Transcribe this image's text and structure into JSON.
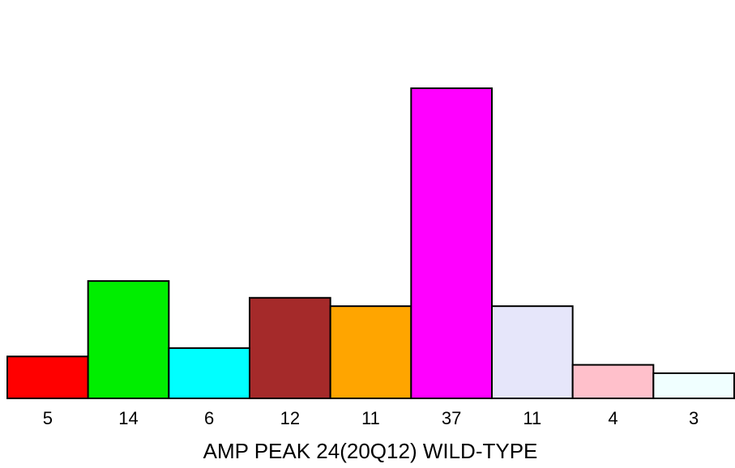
{
  "chart_data": {
    "type": "bar",
    "categories": [
      "5",
      "14",
      "6",
      "12",
      "11",
      "37",
      "11",
      "4",
      "3"
    ],
    "values": [
      5,
      14,
      6,
      12,
      11,
      37,
      11,
      4,
      3
    ],
    "colors": [
      "#ff0000",
      "#00ee00",
      "#00ffff",
      "#a52a2a",
      "#ffa500",
      "#ff00ff",
      "#e6e6fa",
      "#ffc0cb",
      "#f0ffff"
    ],
    "title": "",
    "xlabel": "AMP PEAK 24(20Q12) WILD-TYPE",
    "ylabel": "",
    "ylim": [
      0,
      37
    ],
    "grid": false,
    "legend": "none"
  }
}
